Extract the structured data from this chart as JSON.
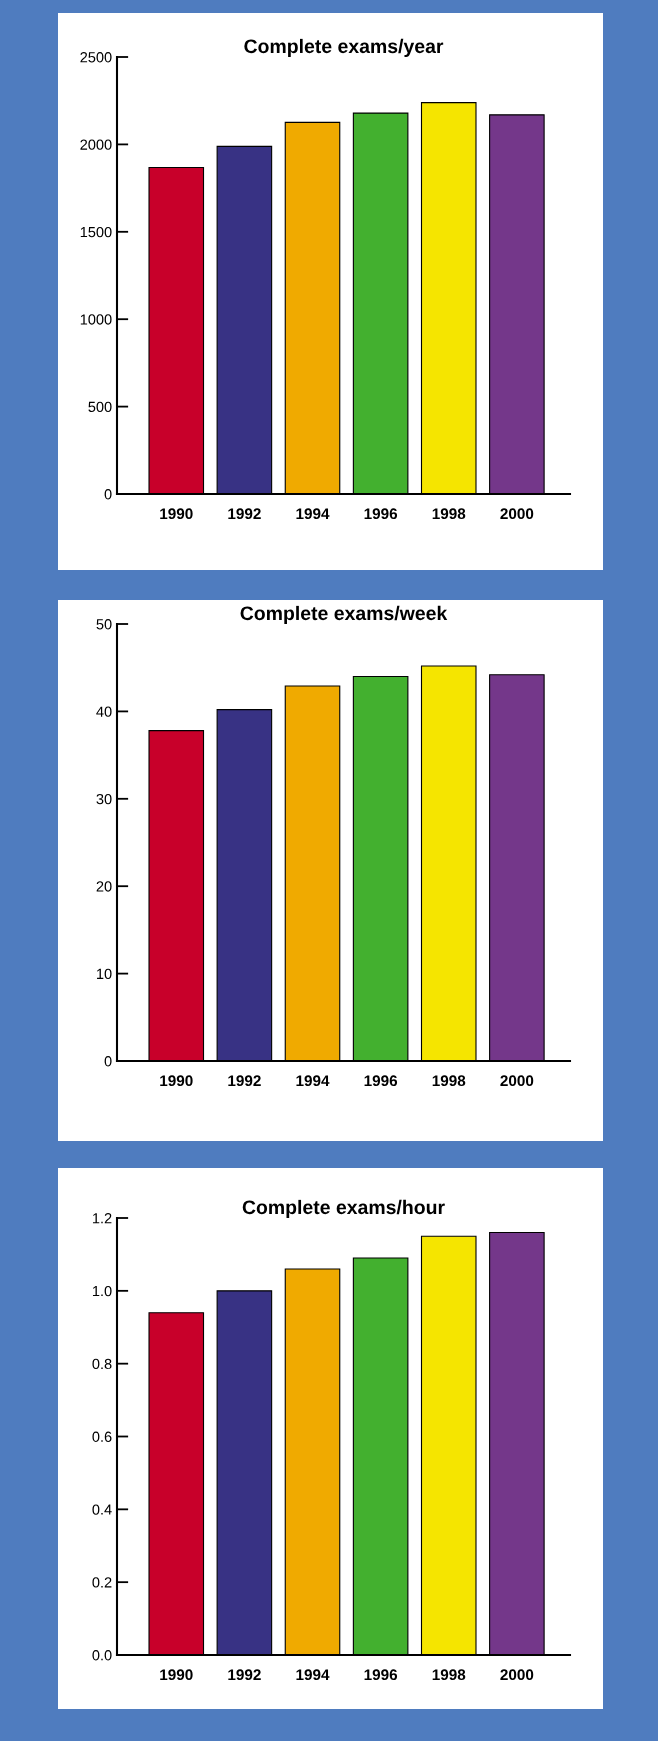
{
  "chart_data": [
    {
      "type": "bar",
      "title": "Complete exams/year",
      "categories": [
        "1990",
        "1992",
        "1994",
        "1996",
        "1998",
        "2000"
      ],
      "values": [
        1868,
        1989,
        2126,
        2179,
        2239,
        2169
      ],
      "colors": [
        "#c8002a",
        "#383284",
        "#f0aa00",
        "#43b02f",
        "#f5e500",
        "#74378a"
      ],
      "ylim": [
        0,
        2500
      ],
      "yticks": [
        0,
        500,
        1000,
        1500,
        2000,
        2500
      ]
    },
    {
      "type": "bar",
      "title": "Complete exams/week",
      "categories": [
        "1990",
        "1992",
        "1994",
        "1996",
        "1998",
        "2000"
      ],
      "values": [
        37.8,
        40.2,
        42.9,
        44.0,
        45.2,
        44.2
      ],
      "colors": [
        "#c8002a",
        "#383284",
        "#f0aa00",
        "#43b02f",
        "#f5e500",
        "#74378a"
      ],
      "ylim": [
        0,
        50
      ],
      "yticks": [
        0,
        10,
        20,
        30,
        40,
        50
      ]
    },
    {
      "type": "bar",
      "title": "Complete exams/hour",
      "categories": [
        "1990",
        "1992",
        "1994",
        "1996",
        "1998",
        "2000"
      ],
      "values": [
        0.94,
        1.0,
        1.06,
        1.09,
        1.15,
        1.16
      ],
      "colors": [
        "#c8002a",
        "#383284",
        "#f0aa00",
        "#43b02f",
        "#f5e500",
        "#74378a"
      ],
      "ylim": [
        0,
        1.2
      ],
      "yticks": [
        {
          "value": 0,
          "label": "0.0"
        },
        0.2,
        0.4,
        0.6,
        0.8,
        {
          "value": 1.0,
          "label": "1.0"
        },
        1.2
      ]
    }
  ]
}
